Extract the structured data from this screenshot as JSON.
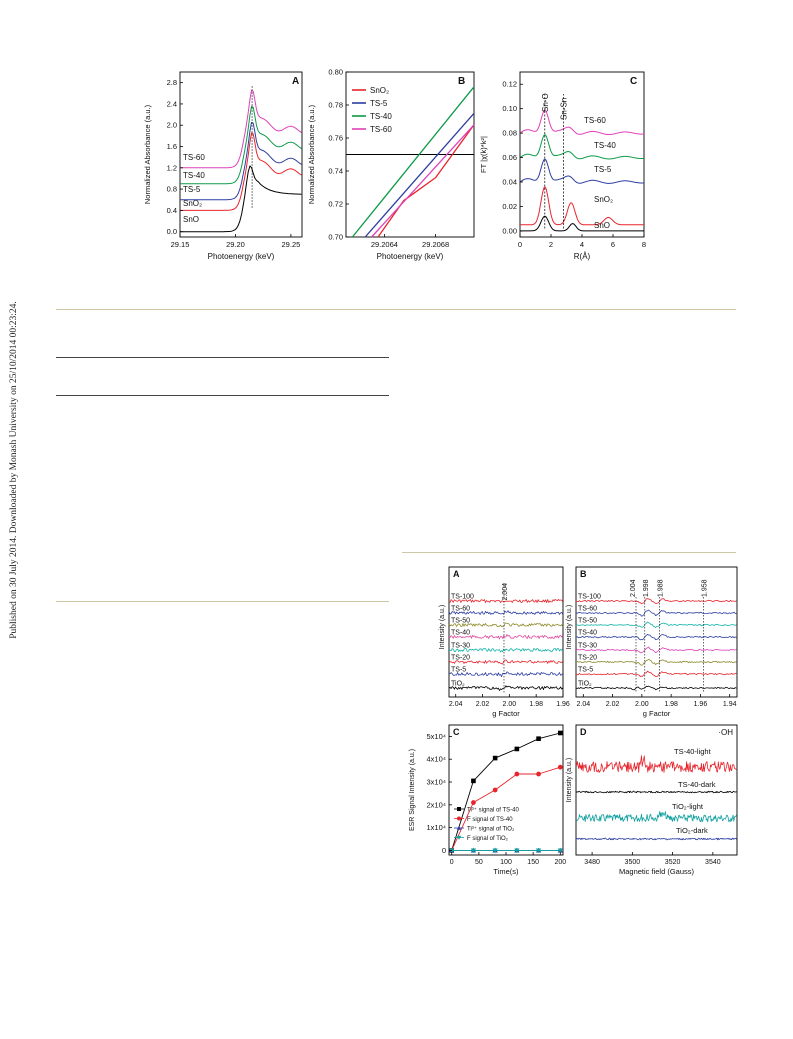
{
  "side_note": "Published on 30 July 2014. Downloaded by Monash University on 25/10/2014 00:23:24.",
  "figure_top": {
    "A": {
      "letter": "A",
      "xlabel": "Photoenergy (keV)",
      "ylabel": "Normalized Absorbance (a.u.)",
      "xticks": [
        "29.15",
        "29.20",
        "29.25"
      ],
      "yticks": [
        "0.0",
        "0.4",
        "0.8",
        "1.2",
        "1.6",
        "2.0",
        "2.4",
        "2.8"
      ],
      "curves": [
        "TS-60",
        "TS-40",
        "TS-5",
        "SnO₂",
        "SnO"
      ]
    },
    "B": {
      "letter": "B",
      "xlabel": "Photoenergy (keV)",
      "ylabel": "Normalized Absorbance (a.u.)",
      "xticks": [
        "29.2064",
        "29.2068"
      ],
      "yticks": [
        "0.70",
        "0.72",
        "0.74",
        "0.76",
        "0.78",
        "0.80"
      ],
      "legend": [
        "SnO₂",
        "TS-5",
        "TS-40",
        "TS-60"
      ]
    },
    "C": {
      "letter": "C",
      "xlabel": "R(Å)",
      "ylabel": "FT |χ(k)*k²|",
      "xticks": [
        "0",
        "2",
        "4",
        "6",
        "8"
      ],
      "yticks": [
        "0.00",
        "0.02",
        "0.04",
        "0.06",
        "0.08",
        "0.10",
        "0.12"
      ],
      "peak_labels": [
        "Sn-O",
        "Sn-Sn"
      ],
      "curves": [
        "TS-60",
        "TS-40",
        "TS-5",
        "SnO₂",
        "SnO"
      ]
    }
  },
  "figure_bottom": {
    "A": {
      "letter": "A",
      "xlabel": "g Factor",
      "ylabel": "Intensity (a.u.)",
      "xticks": [
        "2.04",
        "2.02",
        "2.00",
        "1.98",
        "1.96"
      ],
      "marker": "2.004",
      "curves": [
        "TS-100",
        "TS-60",
        "TS-50",
        "TS-40",
        "TS-30",
        "TS-20",
        "TS-5",
        "TiO₂"
      ]
    },
    "B": {
      "letter": "B",
      "xlabel": "g Factor",
      "ylabel": "Intensity (a.u.)",
      "xticks": [
        "2.04",
        "2.02",
        "2.00",
        "1.98",
        "1.96",
        "1.94"
      ],
      "markers": [
        "2.004",
        "1.998",
        "1.988",
        "1.958"
      ],
      "curves": [
        "TS-100",
        "TS-60",
        "TS-50",
        "TS-40",
        "TS-30",
        "TS-20",
        "TS-5",
        "TiO₂"
      ]
    },
    "C": {
      "letter": "C",
      "xlabel": "Time(s)",
      "ylabel": "ESR Signal Intensity (a.u.)",
      "xticks": [
        "0",
        "50",
        "100",
        "150",
        "200"
      ],
      "yticks": [
        "0",
        "1x10⁴",
        "2x10⁴",
        "3x10⁴",
        "4x10⁴",
        "5x10⁴"
      ]
    },
    "D": {
      "letter": "D",
      "corner_label": "·OH",
      "xlabel": "Magnetic field (Gauss)",
      "ylabel": "Intensity (a.u.)",
      "xticks": [
        "3480",
        "3500",
        "3520",
        "3540"
      ],
      "curves": [
        "TS-40-light",
        "TS-40-dark",
        "TiO₂-light",
        "TiO₂-dark"
      ]
    }
  },
  "chart_data": [
    {
      "type": "line",
      "panel": "A",
      "xlabel": "Photoenergy (keV)",
      "ylabel": "Normalized Absorbance (a.u.)",
      "xlim": [
        29.15,
        29.26
      ],
      "ylim": [
        -0.1,
        3.0
      ],
      "edge_keV": 29.215,
      "series": [
        {
          "name": "SnO",
          "offset": 0.0,
          "color": "#000000"
        },
        {
          "name": "SnO₂",
          "offset": 0.4,
          "color": "#e8252d"
        },
        {
          "name": "TS-5",
          "offset": 0.6,
          "color": "#2c3ea1"
        },
        {
          "name": "TS-40",
          "offset": 0.9,
          "color": "#0b9a48"
        },
        {
          "name": "TS-60",
          "offset": 1.2,
          "color": "#de41b8"
        }
      ]
    },
    {
      "type": "line",
      "panel": "B",
      "xlabel": "Photoenergy (keV)",
      "ylabel": "Normalized Absorbance (a.u.)",
      "xlim": [
        29.2061,
        29.2071
      ],
      "ylim": [
        0.7,
        0.8
      ],
      "hline": 0.75,
      "series": [
        {
          "name": "SnO₂",
          "color": "#e8252d",
          "x": [
            29.20635,
            29.20655,
            29.2068,
            29.2071
          ],
          "y": [
            0.7,
            0.722,
            0.736,
            0.768
          ]
        },
        {
          "name": "TS-5",
          "color": "#2c3ea1",
          "x": [
            29.20625,
            29.2071
          ],
          "y": [
            0.7,
            0.775
          ]
        },
        {
          "name": "TS-40",
          "color": "#0b9a48",
          "x": [
            29.20615,
            29.2071
          ],
          "y": [
            0.7,
            0.791
          ]
        },
        {
          "name": "TS-60",
          "color": "#de41b8",
          "x": [
            29.2063,
            29.2071
          ],
          "y": [
            0.7,
            0.768
          ]
        }
      ]
    },
    {
      "type": "line",
      "panel": "C",
      "xlabel": "R(Å)",
      "ylabel": "FT |χ(k)*k²|",
      "xlim": [
        0,
        8
      ],
      "ylim": [
        -0.005,
        0.13
      ],
      "markers_R": [
        1.6,
        2.8
      ],
      "series": [
        {
          "name": "SnO",
          "offset": 0.0,
          "color": "#000000"
        },
        {
          "name": "SnO₂",
          "offset": 0.005,
          "color": "#e8252d"
        },
        {
          "name": "TS-5",
          "offset": 0.04,
          "color": "#2c3ea1"
        },
        {
          "name": "TS-40",
          "offset": 0.06,
          "color": "#0b9a48"
        },
        {
          "name": "TS-60",
          "offset": 0.08,
          "color": "#de41b8"
        }
      ]
    },
    {
      "type": "line",
      "panel": "A",
      "xlabel": "g Factor",
      "ylabel": "Intensity (a.u.)",
      "xlim": [
        2.045,
        1.96
      ],
      "series": [
        {
          "name": "TS-100",
          "color": "#e8252d"
        },
        {
          "name": "TS-60",
          "color": "#2c3ea1"
        },
        {
          "name": "TS-50",
          "color": "#8e8a2a"
        },
        {
          "name": "TS-40",
          "color": "#e0489c"
        },
        {
          "name": "TS-30",
          "color": "#12b3a8"
        },
        {
          "name": "TS-20",
          "color": "#e8252d"
        },
        {
          "name": "TS-5",
          "color": "#2c3ea1"
        },
        {
          "name": "TiO₂",
          "color": "#000000"
        }
      ]
    },
    {
      "type": "line",
      "panel": "B",
      "xlabel": "g Factor",
      "ylabel": "Intensity (a.u.)",
      "xlim": [
        2.045,
        1.935
      ],
      "series": [
        {
          "name": "TS-100",
          "color": "#e8252d"
        },
        {
          "name": "TS-60",
          "color": "#2c3ea1"
        },
        {
          "name": "TS-50",
          "color": "#12b3a8"
        },
        {
          "name": "TS-40",
          "color": "#2c3ea1"
        },
        {
          "name": "TS-30",
          "color": "#de41b8"
        },
        {
          "name": "TS-20",
          "color": "#8e8a2a"
        },
        {
          "name": "TS-5",
          "color": "#e8252d"
        },
        {
          "name": "TiO₂",
          "color": "#000000"
        }
      ]
    },
    {
      "type": "line",
      "panel": "C",
      "xlabel": "Time(s)",
      "ylabel": "ESR Signal Intensity (a.u.)",
      "xlim": [
        -5,
        205
      ],
      "ylim": [
        -2000,
        55000
      ],
      "series": [
        {
          "name": "Ti³⁺ signal of TS-40",
          "color": "#000000",
          "marker": "square",
          "x": [
            0,
            40,
            80,
            120,
            160,
            200
          ],
          "y": [
            0,
            30500,
            40500,
            44500,
            49000,
            51500
          ]
        },
        {
          "name": "F signal of TS-40",
          "color": "#e8252d",
          "marker": "circle",
          "x": [
            0,
            40,
            80,
            120,
            160,
            200
          ],
          "y": [
            0,
            21000,
            26500,
            33500,
            33500,
            36500
          ]
        },
        {
          "name": "Ti³⁺ signal of TiO₂",
          "color": "#2c3ea1",
          "marker": "triangle-up",
          "x": [
            0,
            40,
            80,
            120,
            160,
            200
          ],
          "y": [
            0,
            0,
            0,
            0,
            0,
            0
          ]
        },
        {
          "name": "F signal of TiO₂",
          "color": "#12a0a0",
          "marker": "triangle-down",
          "x": [
            0,
            40,
            80,
            120,
            160,
            200
          ],
          "y": [
            0,
            0,
            0,
            0,
            0,
            0
          ]
        }
      ]
    },
    {
      "type": "line",
      "panel": "D",
      "xlabel": "Magnetic field (Gauss)",
      "ylabel": "Intensity (a.u.)",
      "xlim": [
        3472,
        3552
      ],
      "series": [
        {
          "name": "TS-40-light",
          "color": "#e8252d"
        },
        {
          "name": "TS-40-dark",
          "color": "#000000"
        },
        {
          "name": "TiO₂-light",
          "color": "#12a0a0"
        },
        {
          "name": "TiO₂-dark",
          "color": "#2c3ea1"
        }
      ]
    }
  ]
}
